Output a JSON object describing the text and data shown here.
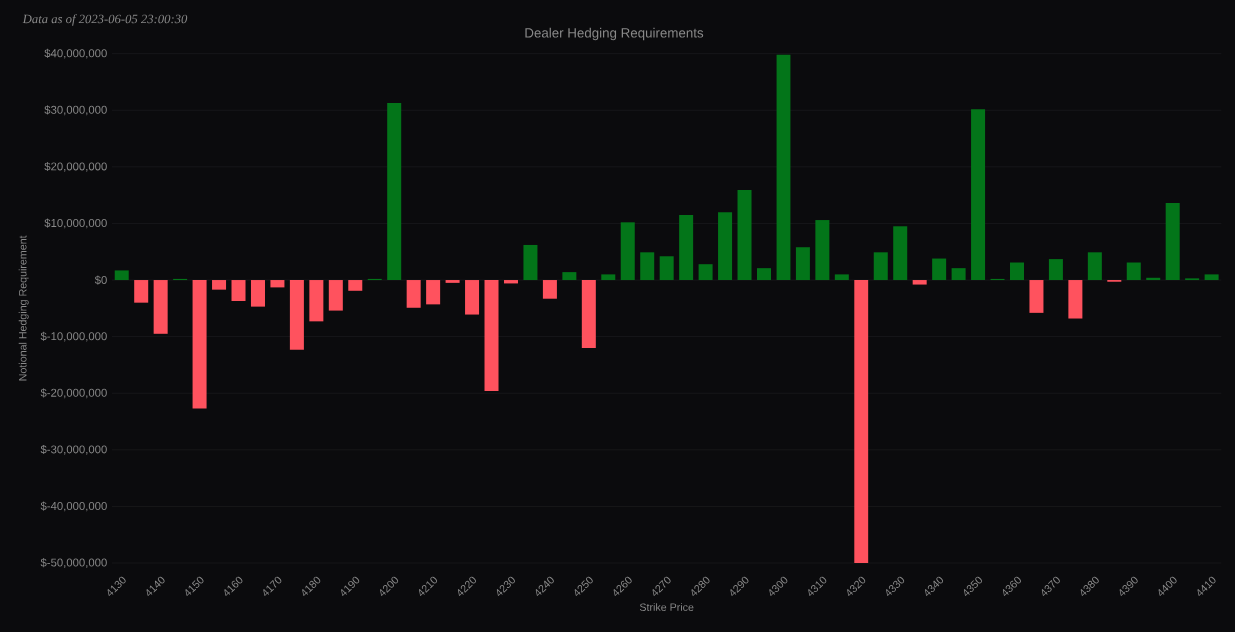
{
  "chart_data": {
    "type": "bar",
    "title": "Dealer Hedging Requirements",
    "xlabel": "Strike Price",
    "ylabel": "Notional Hedging Requirement",
    "annotations": [
      "Data as of 2023-06-05 23:00:30"
    ],
    "x": [
      4130,
      4135,
      4140,
      4145,
      4150,
      4155,
      4160,
      4165,
      4170,
      4175,
      4180,
      4185,
      4190,
      4195,
      4200,
      4205,
      4210,
      4215,
      4220,
      4225,
      4230,
      4235,
      4240,
      4245,
      4250,
      4255,
      4260,
      4265,
      4270,
      4275,
      4280,
      4285,
      4290,
      4295,
      4300,
      4305,
      4310,
      4315,
      4320,
      4325,
      4330,
      4335,
      4340,
      4345,
      4350,
      4355,
      4360,
      4365,
      4370,
      4375,
      4380,
      4385,
      4390,
      4395,
      4400,
      4405,
      4410
    ],
    "values": [
      1700000,
      -4000000,
      -9500000,
      200000,
      -22700000,
      -1700000,
      -3700000,
      -4700000,
      -1300000,
      -12300000,
      -7300000,
      -5400000,
      -1900000,
      200000,
      31300000,
      -4900000,
      -4300000,
      -500000,
      -6100000,
      -19600000,
      -600000,
      6200000,
      -3300000,
      1400000,
      -12000000,
      1000000,
      10200000,
      4900000,
      4200000,
      11500000,
      2800000,
      12000000,
      15900000,
      2100000,
      39800000,
      5800000,
      10600000,
      1000000,
      -50000000,
      4900000,
      9500000,
      -800000,
      3800000,
      2100000,
      30200000,
      200000,
      3100000,
      -5800000,
      3700000,
      -6800000,
      4900000,
      -300000,
      3100000,
      400000,
      13600000,
      300000,
      1000000
    ],
    "colors": [
      "#037519",
      "#ff525e",
      "#ff525e",
      "#037519",
      "#ff525e",
      "#ff525e",
      "#ff525e",
      "#ff525e",
      "#ff525e",
      "#ff525e",
      "#ff525e",
      "#ff525e",
      "#ff525e",
      "#037519",
      "#037519",
      "#ff525e",
      "#ff525e",
      "#ff525e",
      "#ff525e",
      "#ff525e",
      "#ff525e",
      "#037519",
      "#ff525e",
      "#037519",
      "#ff525e",
      "#037519",
      "#037519",
      "#037519",
      "#037519",
      "#037519",
      "#037519",
      "#037519",
      "#037519",
      "#037519",
      "#037519",
      "#037519",
      "#037519",
      "#037519",
      "#ff525e",
      "#037519",
      "#037519",
      "#ff525e",
      "#037519",
      "#037519",
      "#037519",
      "#037519",
      "#037519",
      "#ff525e",
      "#037519",
      "#ff525e",
      "#037519",
      "#ff525e",
      "#037519",
      "#037519",
      "#037519",
      "#037519",
      "#037519"
    ],
    "xlim": [
      4127.5,
      4412.5
    ],
    "xticks": [
      4130,
      4140,
      4150,
      4160,
      4170,
      4180,
      4190,
      4200,
      4210,
      4220,
      4230,
      4240,
      4250,
      4260,
      4270,
      4280,
      4290,
      4300,
      4310,
      4320,
      4330,
      4340,
      4350,
      4360,
      4370,
      4380,
      4390,
      4400,
      4410
    ],
    "ylim": [
      -50000000,
      40000000
    ],
    "yticks": [
      {
        "value": -50000000,
        "label": "$-50,000,000"
      },
      {
        "value": -40000000,
        "label": "$-40,000,000"
      },
      {
        "value": -30000000,
        "label": "$-30,000,000"
      },
      {
        "value": -20000000,
        "label": "$-20,000,000"
      },
      {
        "value": -10000000,
        "label": "$-10,000,000"
      },
      {
        "value": 0,
        "label": "$0"
      },
      {
        "value": 10000000,
        "label": "$10,000,000"
      },
      {
        "value": 20000000,
        "label": "$20,000,000"
      },
      {
        "value": 30000000,
        "label": "$30,000,000"
      },
      {
        "value": 40000000,
        "label": "$40,000,000"
      }
    ],
    "grid": "y"
  }
}
